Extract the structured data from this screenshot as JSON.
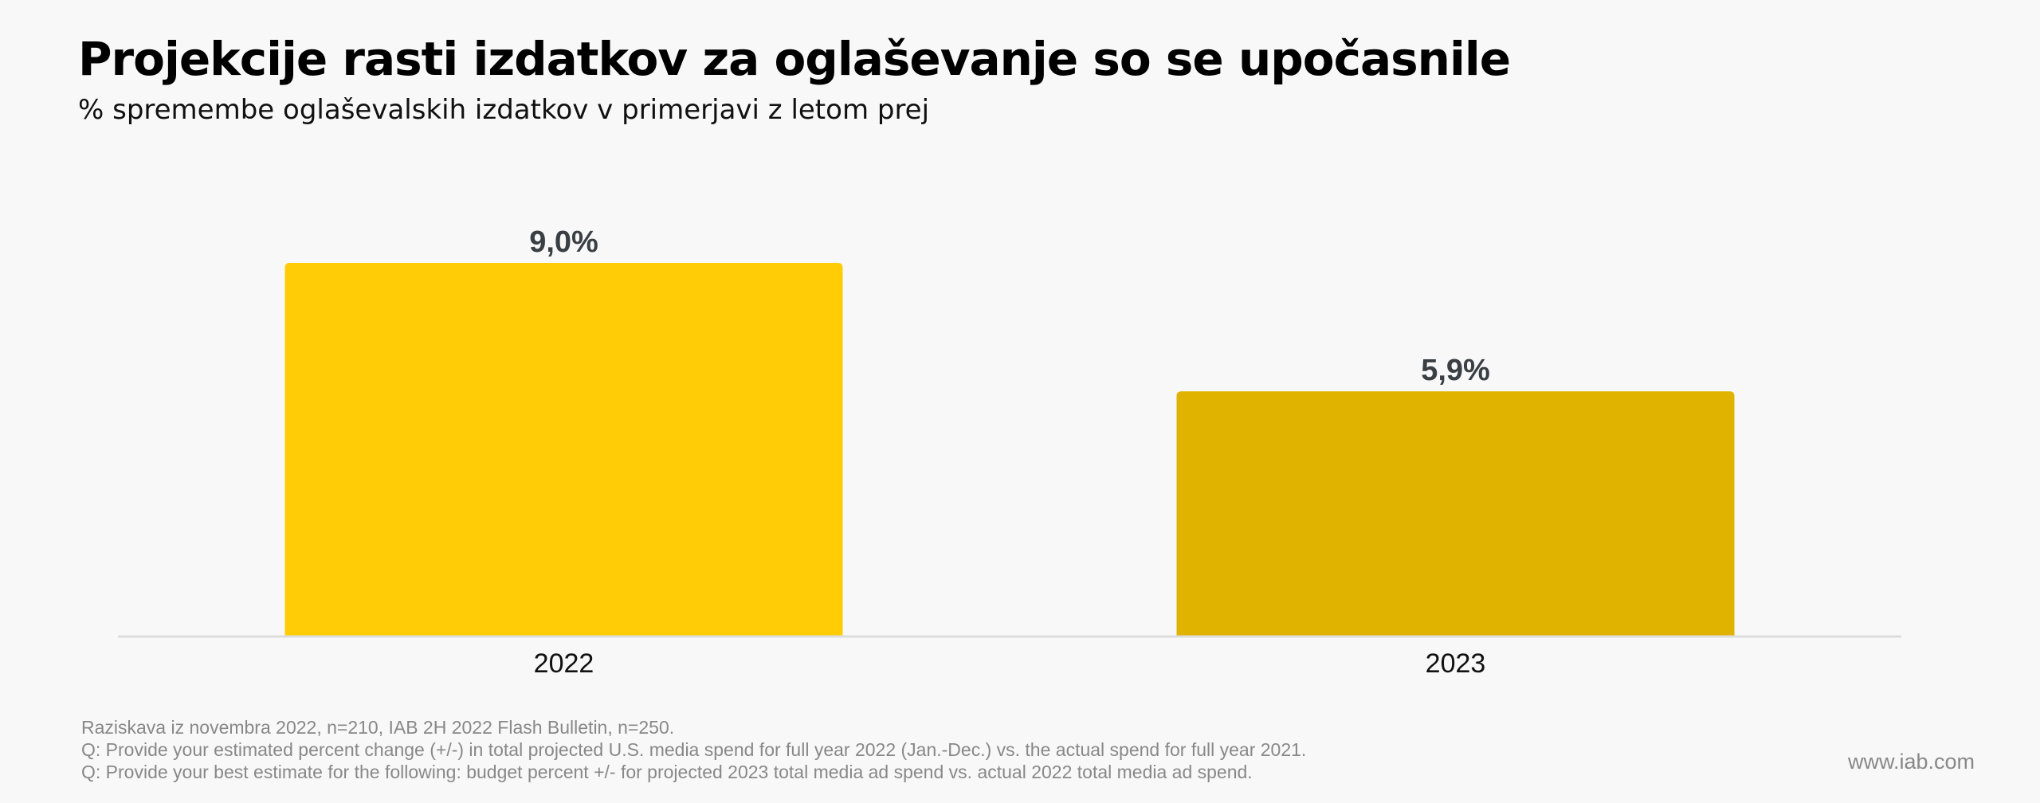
{
  "header": {
    "title": "Projekcije rasti izdatkov za oglaševanje so se upočasnile",
    "subtitle": "% spremembe oglaševalskih izdatkov v primerjavi z letom prej"
  },
  "chart_data": {
    "type": "bar",
    "categories": [
      "2022",
      "2023"
    ],
    "values": [
      9.0,
      5.9
    ],
    "data_labels": [
      "9,0%",
      "5,9%"
    ],
    "colors": [
      "#ffcc05",
      "#e0b300"
    ],
    "title": "Projekcije rasti izdatkov za oglaševanje so se upočasnile",
    "subtitle": "% spremembe oglaševalskih izdatkov v primerjavi z letom prej",
    "xlabel": "",
    "ylabel": "",
    "ylim": [
      0,
      10
    ],
    "grid": false,
    "legend": "none"
  },
  "footer": {
    "notes": [
      "Raziskava iz novembra 2022, n=210, IAB 2H 2022 Flash Bulletin, n=250.",
      "Q: Provide your estimated percent change (+/-) in total projected U.S. media spend for full year 2022 (Jan.-Dec.) vs. the actual spend for full year 2021.",
      "Q: Provide your best estimate for the following: budget percent +/- for projected 2023 total media ad spend vs. actual 2022 total media ad spend."
    ],
    "website": "www.iab.com"
  },
  "colors": {
    "background": "#f8f8f8",
    "axis": "#dddddd",
    "data_label": "#3a3f44"
  }
}
